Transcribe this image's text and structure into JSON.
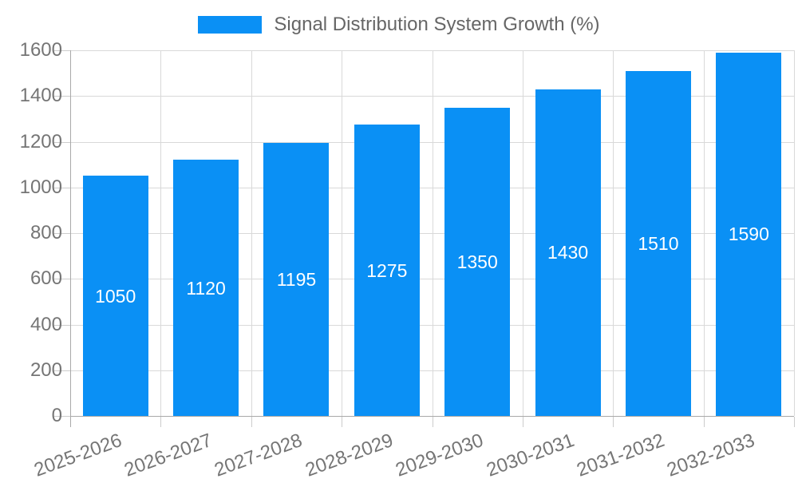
{
  "chart_data": {
    "type": "bar",
    "title": "Signal Distribution System Growth (%)",
    "categories": [
      "2025-2026",
      "2026-2027",
      "2027-2028",
      "2028-2029",
      "2029-2030",
      "2030-2031",
      "2031-2032",
      "2032-2033"
    ],
    "values": [
      1050,
      1120,
      1195,
      1275,
      1350,
      1430,
      1510,
      1590
    ],
    "bar_labels": [
      "1050",
      "1120",
      "1195",
      "1275",
      "1350",
      "1430",
      "1510",
      "1590"
    ],
    "xlabel": "",
    "ylabel": "",
    "ylim": [
      0,
      1600
    ],
    "yticks": [
      0,
      200,
      400,
      600,
      800,
      1000,
      1200,
      1400,
      1600
    ],
    "grid": true,
    "legend_position": "top-center",
    "colors": {
      "bar": "#0a90f5",
      "bar_label": "#ffffff",
      "grid_line": "#d9d9d9",
      "axis_line": "#a9a9a9",
      "tick_mark": "#cccccc",
      "axis_text": "#757575",
      "title_text": "#666666",
      "background": "#ffffff"
    }
  }
}
